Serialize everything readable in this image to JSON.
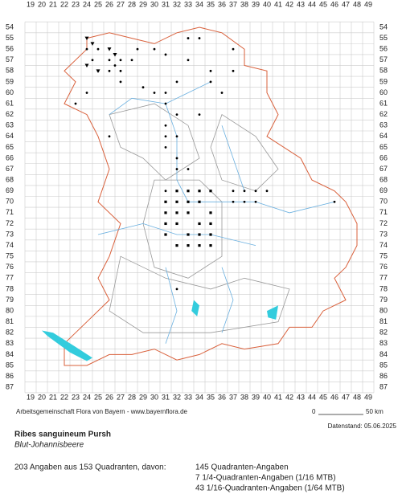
{
  "map": {
    "x_labels": [
      19,
      20,
      21,
      22,
      23,
      24,
      25,
      26,
      27,
      28,
      29,
      30,
      31,
      32,
      33,
      34,
      35,
      36,
      37,
      38,
      39,
      40,
      41,
      42,
      43,
      44,
      45,
      46,
      47,
      48,
      49
    ],
    "y_labels": [
      54,
      55,
      56,
      57,
      58,
      59,
      60,
      61,
      62,
      63,
      64,
      65,
      66,
      67,
      68,
      69,
      70,
      71,
      72,
      73,
      74,
      75,
      76,
      77,
      78,
      79,
      80,
      81,
      82,
      83,
      84,
      85,
      86,
      87
    ],
    "scale": {
      "start": "0",
      "end": "50 km"
    },
    "credit": "Arbeitsgemeinschaft Flora von Bayern - www.bayernflora.de",
    "date": "Datenstand: 05.06.2025"
  },
  "species": {
    "name": "Ribes sanguineum Pursh",
    "common": "Blut-Johannisbeere"
  },
  "summary": {
    "total": "203 Angaben aus 153 Quadranten, davon:",
    "lines": [
      "145 Quadranten-Angaben",
      "7 1/4-Quadranten-Angaben (1/16 MTB)",
      "43 1/16-Quadranten-Angaben (1/64 MTB)"
    ]
  }
}
